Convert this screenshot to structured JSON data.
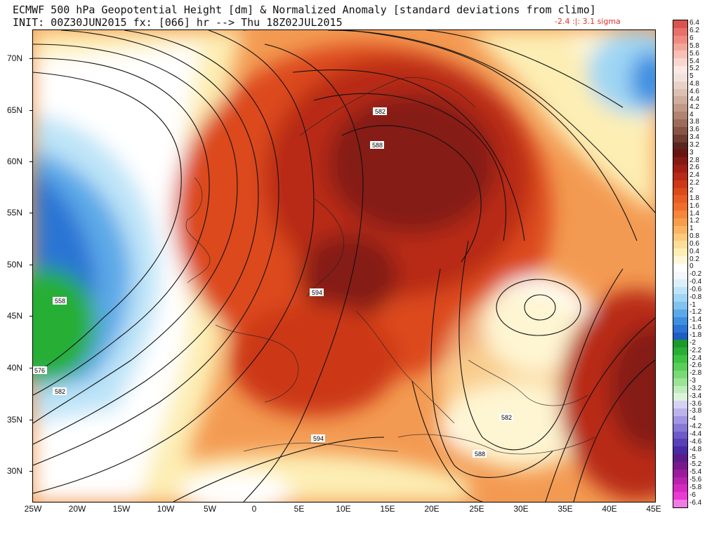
{
  "header": {
    "line1": "ECMWF 500 hPa Geopotential Height [dm] & Normalized Anomaly [standard deviations from climo]",
    "line2": "INIT: 00Z30JUN2015 fx: [066] hr --> Thu 18Z02JUL2015",
    "extremes": "-2.4 :|: 3.1 sigma",
    "extremes_color": "#e0302a"
  },
  "axes": {
    "lat_labels": [
      "70N",
      "65N",
      "60N",
      "55N",
      "50N",
      "45N",
      "40N",
      "35N",
      "30N"
    ],
    "lon_labels": [
      "25W",
      "20W",
      "15W",
      "10W",
      "5W",
      "0",
      "5E",
      "10E",
      "15E",
      "20E",
      "25E",
      "30E",
      "35E",
      "40E",
      "45E"
    ]
  },
  "contour_labels": [
    {
      "text": "582",
      "id": "c582-scandinavia"
    },
    {
      "text": "588",
      "id": "c588-baltic"
    },
    {
      "text": "594",
      "id": "c594-alps"
    },
    {
      "text": "558",
      "id": "c558-atlantic"
    },
    {
      "text": "576",
      "id": "c576-west-edge"
    },
    {
      "text": "582",
      "id": "c582-atlantic"
    },
    {
      "text": "594",
      "id": "c594-north-africa"
    },
    {
      "text": "582",
      "id": "c582-crete"
    },
    {
      "text": "588",
      "id": "c588-egypt"
    }
  ],
  "colorbar": {
    "labels": [
      "6.4",
      "6.2",
      "6",
      "5.8",
      "5.6",
      "5.4",
      "5.2",
      "5",
      "4.8",
      "4.6",
      "4.4",
      "4.2",
      "4",
      "3.8",
      "3.6",
      "3.4",
      "3.2",
      "3",
      "2.8",
      "2.6",
      "2.4",
      "2.2",
      "2",
      "1.8",
      "1.6",
      "1.4",
      "1.2",
      "1",
      "0.8",
      "0.6",
      "0.4",
      "0.2",
      "0",
      "-0.2",
      "-0.4",
      "-0.6",
      "-0.8",
      "-1",
      "-1.2",
      "-1.4",
      "-1.6",
      "-1.8",
      "-2",
      "-2.2",
      "-2.4",
      "-2.6",
      "-2.8",
      "-3",
      "-3.2",
      "-3.4",
      "-3.6",
      "-3.8",
      "-4",
      "-4.2",
      "-4.4",
      "-4.6",
      "-4.8",
      "-5",
      "-5.2",
      "-5.4",
      "-5.6",
      "-5.8",
      "-6",
      "-6.4"
    ],
    "colors": [
      "#d9534f",
      "#e8706a",
      "#f08a80",
      "#f4a59a",
      "#f8c0b6",
      "#fbd6cf",
      "#fde8e3",
      "#f2e2dc",
      "#e8d2c8",
      "#dcc0b2",
      "#cfae9c",
      "#c09a86",
      "#b08470",
      "#9c6c58",
      "#865444",
      "#6f3c30",
      "#5a2620",
      "#6a1410",
      "#861a12",
      "#a01e14",
      "#b82a16",
      "#cc3818",
      "#dc4a1c",
      "#e85c22",
      "#f06e2c",
      "#f5863a",
      "#f89c4c",
      "#fab462",
      "#fcca7c",
      "#fddd98",
      "#fdeeb4",
      "#fef8d8",
      "#ffffff",
      "#f4f8fb",
      "#dcf0fa",
      "#bde4f8",
      "#9fd6f4",
      "#80c3ef",
      "#5ca9e8",
      "#3e8fe0",
      "#2c74d4",
      "#1f5cc4",
      "#1a9a2a",
      "#28ae34",
      "#3ec244",
      "#58cf58",
      "#78da74",
      "#9ae496",
      "#bcedba",
      "#dcf5da",
      "#d6d2f4",
      "#bcb4ec",
      "#a296e2",
      "#8878d6",
      "#6e5ac8",
      "#5a40b8",
      "#4a2aa4",
      "#5a1c8a",
      "#781a8c",
      "#9a1c9c",
      "#b822ac",
      "#d42ac0",
      "#ea3ad2",
      "#f27ae4"
    ]
  }
}
